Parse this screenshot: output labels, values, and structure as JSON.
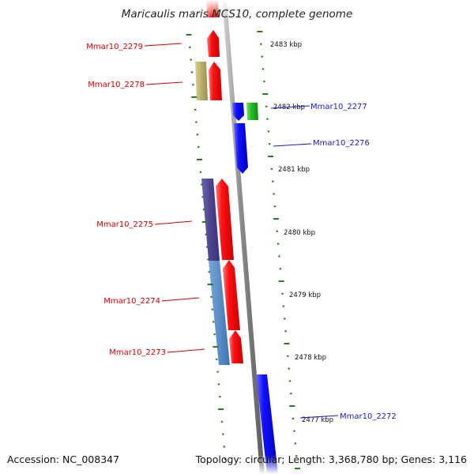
{
  "title": "Maricaulis maris MCS10, complete genome",
  "footer": {
    "accession": "Accession: NC_008347",
    "summary": "Topology: circular; Length: 3,368,780 bp; Genes: 3,116"
  },
  "colors": {
    "left_gene_label": "#d40000",
    "right_gene_label": "#1a1acc",
    "tick": "#2a7a1f",
    "backbone": "#8a8a8a",
    "forward_cds": "#ee0000",
    "reverse_cds": "#0000ee"
  },
  "scale_labels": [
    "2483 kbp",
    "2482 kbp",
    "2481 kbp",
    "2480 kbp",
    "2479 kbp",
    "2478 kbp",
    "2477 kbp"
  ],
  "gene_labels": {
    "left": [
      "Mmar10_2279",
      "Mmar10_2278",
      "Mmar10_2275",
      "Mmar10_2274",
      "Mmar10_2273"
    ],
    "right": [
      "Mmar10_2277",
      "Mmar10_2276",
      "Mmar10_2272"
    ]
  }
}
